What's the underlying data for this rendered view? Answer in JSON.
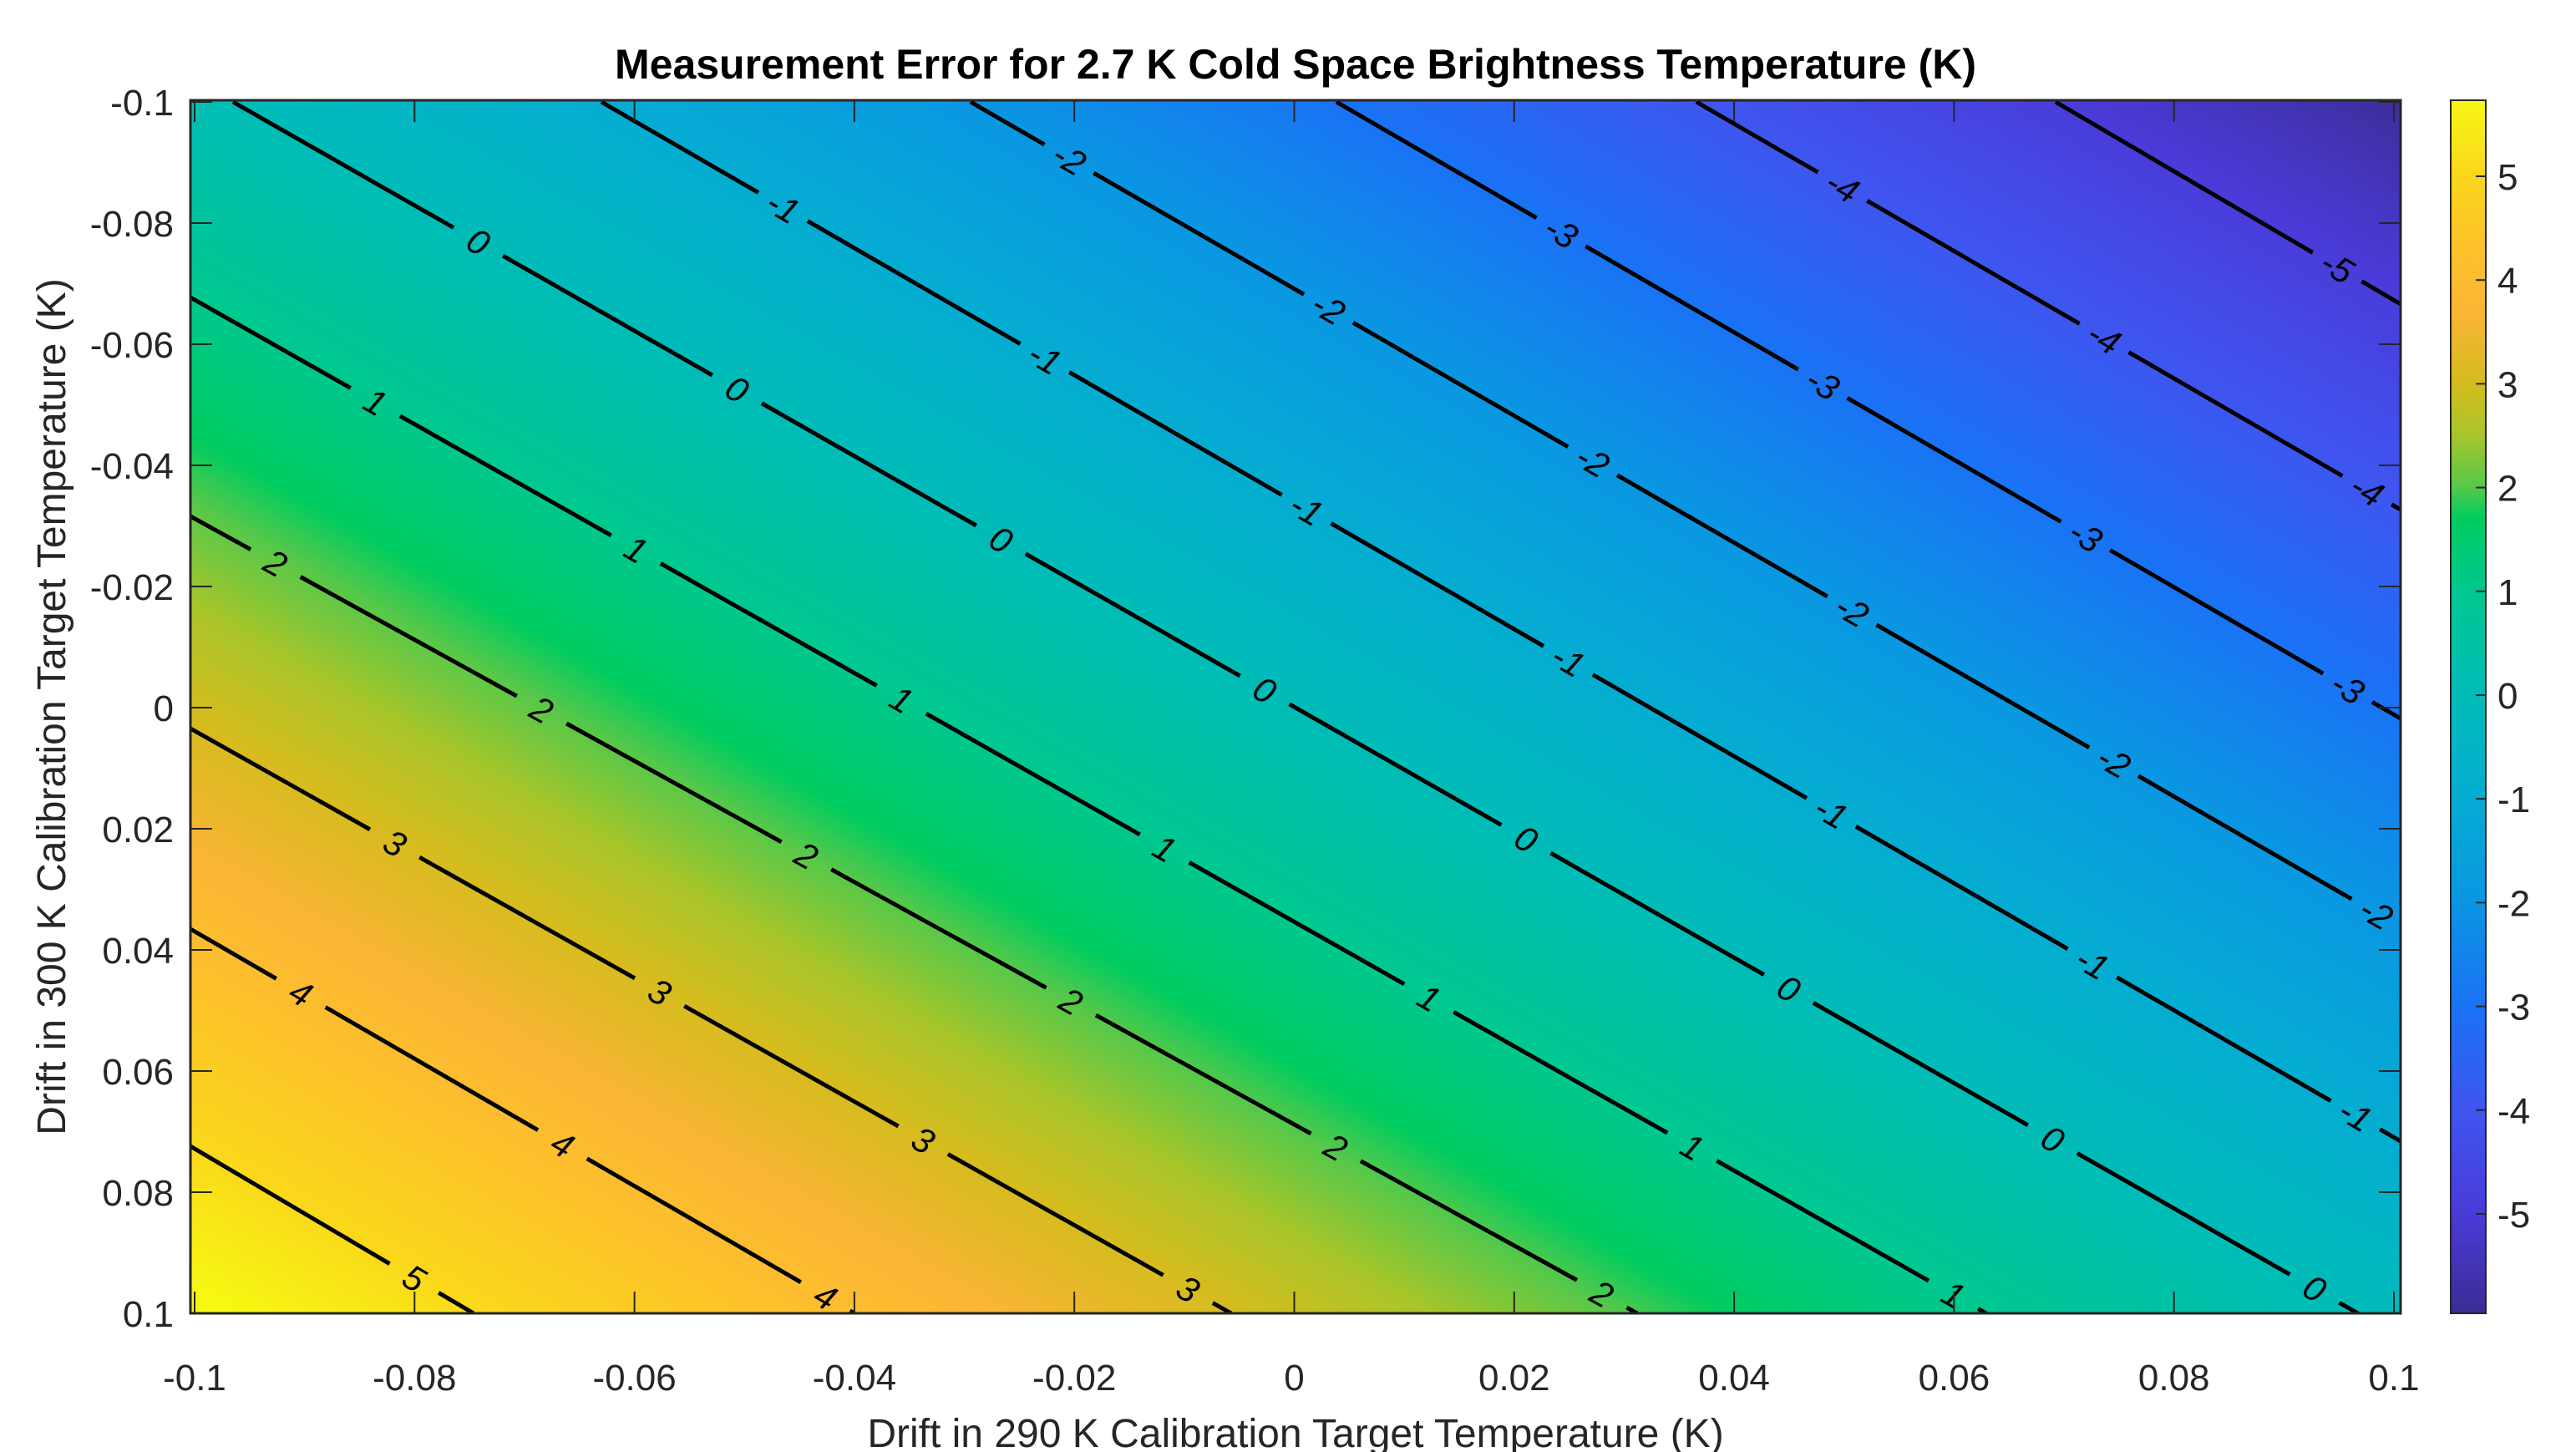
{
  "chart_data": {
    "type": "heatmap",
    "subtype": "filled-contour with labeled contour lines",
    "title": "Measurement Error for 2.7 K Cold Space Brightness Temperature (K)",
    "xlabel": "Drift in 290 K Calibration Target Temperature (K)",
    "ylabel": "Drift in 300 K Calibration Target Temperature (K)",
    "xlim": [
      -0.1,
      0.1
    ],
    "ylim": [
      -0.1,
      0.1
    ],
    "y_direction": "reversed (top = -0.1, bottom = 0.1)",
    "x_ticks": [
      "-0.1",
      "-0.08",
      "-0.06",
      "-0.04",
      "-0.02",
      "0",
      "0.02",
      "0.04",
      "0.06",
      "0.08",
      "0.1"
    ],
    "y_ticks": [
      "-0.1",
      "-0.08",
      "-0.06",
      "-0.04",
      "-0.02",
      "0",
      "0.02",
      "0.04",
      "0.06",
      "0.08",
      "0.1"
    ],
    "colorbar": {
      "range": [
        -5.96,
        5.73
      ],
      "ticks": [
        "5",
        "4",
        "3",
        "2",
        "1",
        "0",
        "-1",
        "-2",
        "-3",
        "-4",
        "-5"
      ],
      "colormap": "parula"
    },
    "corner_values": {
      "top_left": 0.1,
      "top_right": -5.9,
      "bottom_left": 5.9,
      "bottom_right": -0.1
    },
    "contour_levels": [
      5,
      4,
      3,
      2,
      1,
      0,
      -1,
      -2,
      -3,
      -4,
      -5
    ],
    "contours": [
      {
        "level": "5",
        "p1": [
          228,
          1372
        ],
        "p2": [
          567,
          1572
        ],
        "labels": [
          [
            484,
            1550
          ]
        ]
      },
      {
        "level": "4",
        "p1": [
          228,
          1112
        ],
        "p2": [
          1023,
          1572
        ],
        "labels": [
          [
            350,
            1206
          ],
          [
            664,
            1386
          ],
          [
            980,
            1566
          ]
        ]
      },
      {
        "level": "3",
        "p1": [
          228,
          872
        ],
        "p2": [
          1474,
          1572
        ],
        "labels": [
          [
            470,
            1014
          ],
          [
            786,
            1194
          ],
          [
            1100,
            1374
          ],
          [
            1416,
            1554
          ]
        ]
      },
      {
        "level": "2",
        "p1": [
          228,
          618
        ],
        "p2": [
          1960,
          1572
        ],
        "labels": [
          [
            330,
            674
          ],
          [
            646,
            854
          ],
          [
            960,
            1034
          ],
          [
            1276,
            1210
          ],
          [
            1590,
            1390
          ],
          [
            1906,
            1570
          ]
        ]
      },
      {
        "level": "1",
        "p1": [
          228,
          356
        ],
        "p2": [
          2378,
          1572
        ],
        "labels": [
          [
            450,
            480
          ],
          [
            760,
            660
          ],
          [
            1080,
            836
          ],
          [
            1394,
            1016
          ],
          [
            1710,
            1196
          ],
          [
            2024,
            1376
          ],
          [
            2336,
            1554
          ]
        ]
      },
      {
        "level": "0",
        "p1": [
          279,
          122
        ],
        "p2": [
          2823,
          1572
        ],
        "labels": [
          [
            570,
            294
          ],
          [
            880,
            470
          ],
          [
            1196,
            650
          ],
          [
            1514,
            826
          ],
          [
            1826,
            1006
          ],
          [
            2140,
            1186
          ],
          [
            2456,
            1366
          ],
          [
            2770,
            1544
          ]
        ]
      },
      {
        "level": "-1",
        "p1": [
          720,
          122
        ],
        "p2": [
          2874,
          1366
        ],
        "labels": [
          [
            936,
            250
          ],
          [
            1250,
            430
          ],
          [
            1566,
            606
          ],
          [
            1880,
            786
          ],
          [
            2196,
            966
          ],
          [
            2510,
            1144
          ],
          [
            2826,
            1324
          ]
        ]
      },
      {
        "level": "-2",
        "p1": [
          1162,
          122
        ],
        "p2": [
          2874,
          1110
        ],
        "labels": [
          [
            1280,
            190
          ],
          [
            1590,
            370
          ],
          [
            1910,
            546
          ],
          [
            2220,
            726
          ],
          [
            2534,
            906
          ],
          [
            2850,
            1084
          ]
        ]
      },
      {
        "level": "-3",
        "p1": [
          1600,
          122
        ],
        "p2": [
          2874,
          860
        ],
        "labels": [
          [
            1870,
            276
          ],
          [
            2184,
            456
          ],
          [
            2500,
            636
          ],
          [
            2816,
            814
          ]
        ]
      },
      {
        "level": "-4",
        "p1": [
          2031,
          122
        ],
        "p2": [
          2874,
          610
        ],
        "labels": [
          [
            2210,
            216
          ],
          [
            2524,
            396
          ],
          [
            2840,
            576
          ]
        ]
      },
      {
        "level": "-5",
        "p1": [
          2461,
          122
        ],
        "p2": [
          2874,
          364
        ],
        "labels": [
          [
            2806,
            306
          ]
        ]
      }
    ]
  },
  "figure": {
    "title": "Measurement Error for 2.7 K Cold Space Brightness Temperature (K)",
    "xlabel": "Drift in 290 K Calibration Target Temperature (K)",
    "ylabel": "Drift in 300 K Calibration Target Temperature (K)"
  },
  "colors": {
    "stops": [
      {
        "v": -5.96,
        "c": "#3b2d94"
      },
      {
        "v": -5.0,
        "c": "#4a3bd8"
      },
      {
        "v": -4.0,
        "c": "#3f55f0"
      },
      {
        "v": -3.0,
        "c": "#1a72f5"
      },
      {
        "v": -2.0,
        "c": "#0a96e2"
      },
      {
        "v": -1.0,
        "c": "#05acd2"
      },
      {
        "v": 0.0,
        "c": "#00bcb8"
      },
      {
        "v": 1.0,
        "c": "#00c890"
      },
      {
        "v": 1.7,
        "c": "#00cc60"
      },
      {
        "v": 2.0,
        "c": "#55c84a"
      },
      {
        "v": 2.5,
        "c": "#a8c52a"
      },
      {
        "v": 3.0,
        "c": "#d4bc1e"
      },
      {
        "v": 3.7,
        "c": "#fbb535"
      },
      {
        "v": 4.3,
        "c": "#fdc22a"
      },
      {
        "v": 5.0,
        "c": "#fad61c"
      },
      {
        "v": 5.73,
        "c": "#f7f812"
      }
    ]
  }
}
